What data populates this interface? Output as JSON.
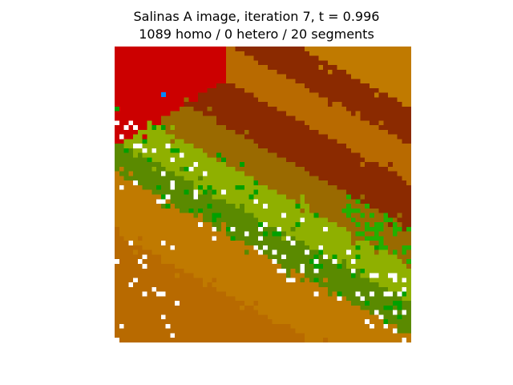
{
  "figure": {
    "title_line1": "Salinas A image, iteration 7, t = 0.996",
    "title_line2": "1089 homo / 0 hetero / 20 segments"
  },
  "image": {
    "grid_cols": 64,
    "grid_rows": 64,
    "palette": {
      "red": "#cc0000",
      "dark_rust": "#8b2a00",
      "rust": "#9a3a00",
      "brown_orange": "#a55200",
      "orange": "#b86a00",
      "amber": "#c07a00",
      "olive_brown": "#9a6a00",
      "olive": "#8a8a00",
      "yellow_green": "#8fb000",
      "lime": "#9bb800",
      "green_olive": "#5a8a00",
      "green": "#00a000",
      "bright_green": "#22b000",
      "blue": "#0088ff",
      "white": "#ffffff"
    }
  }
}
